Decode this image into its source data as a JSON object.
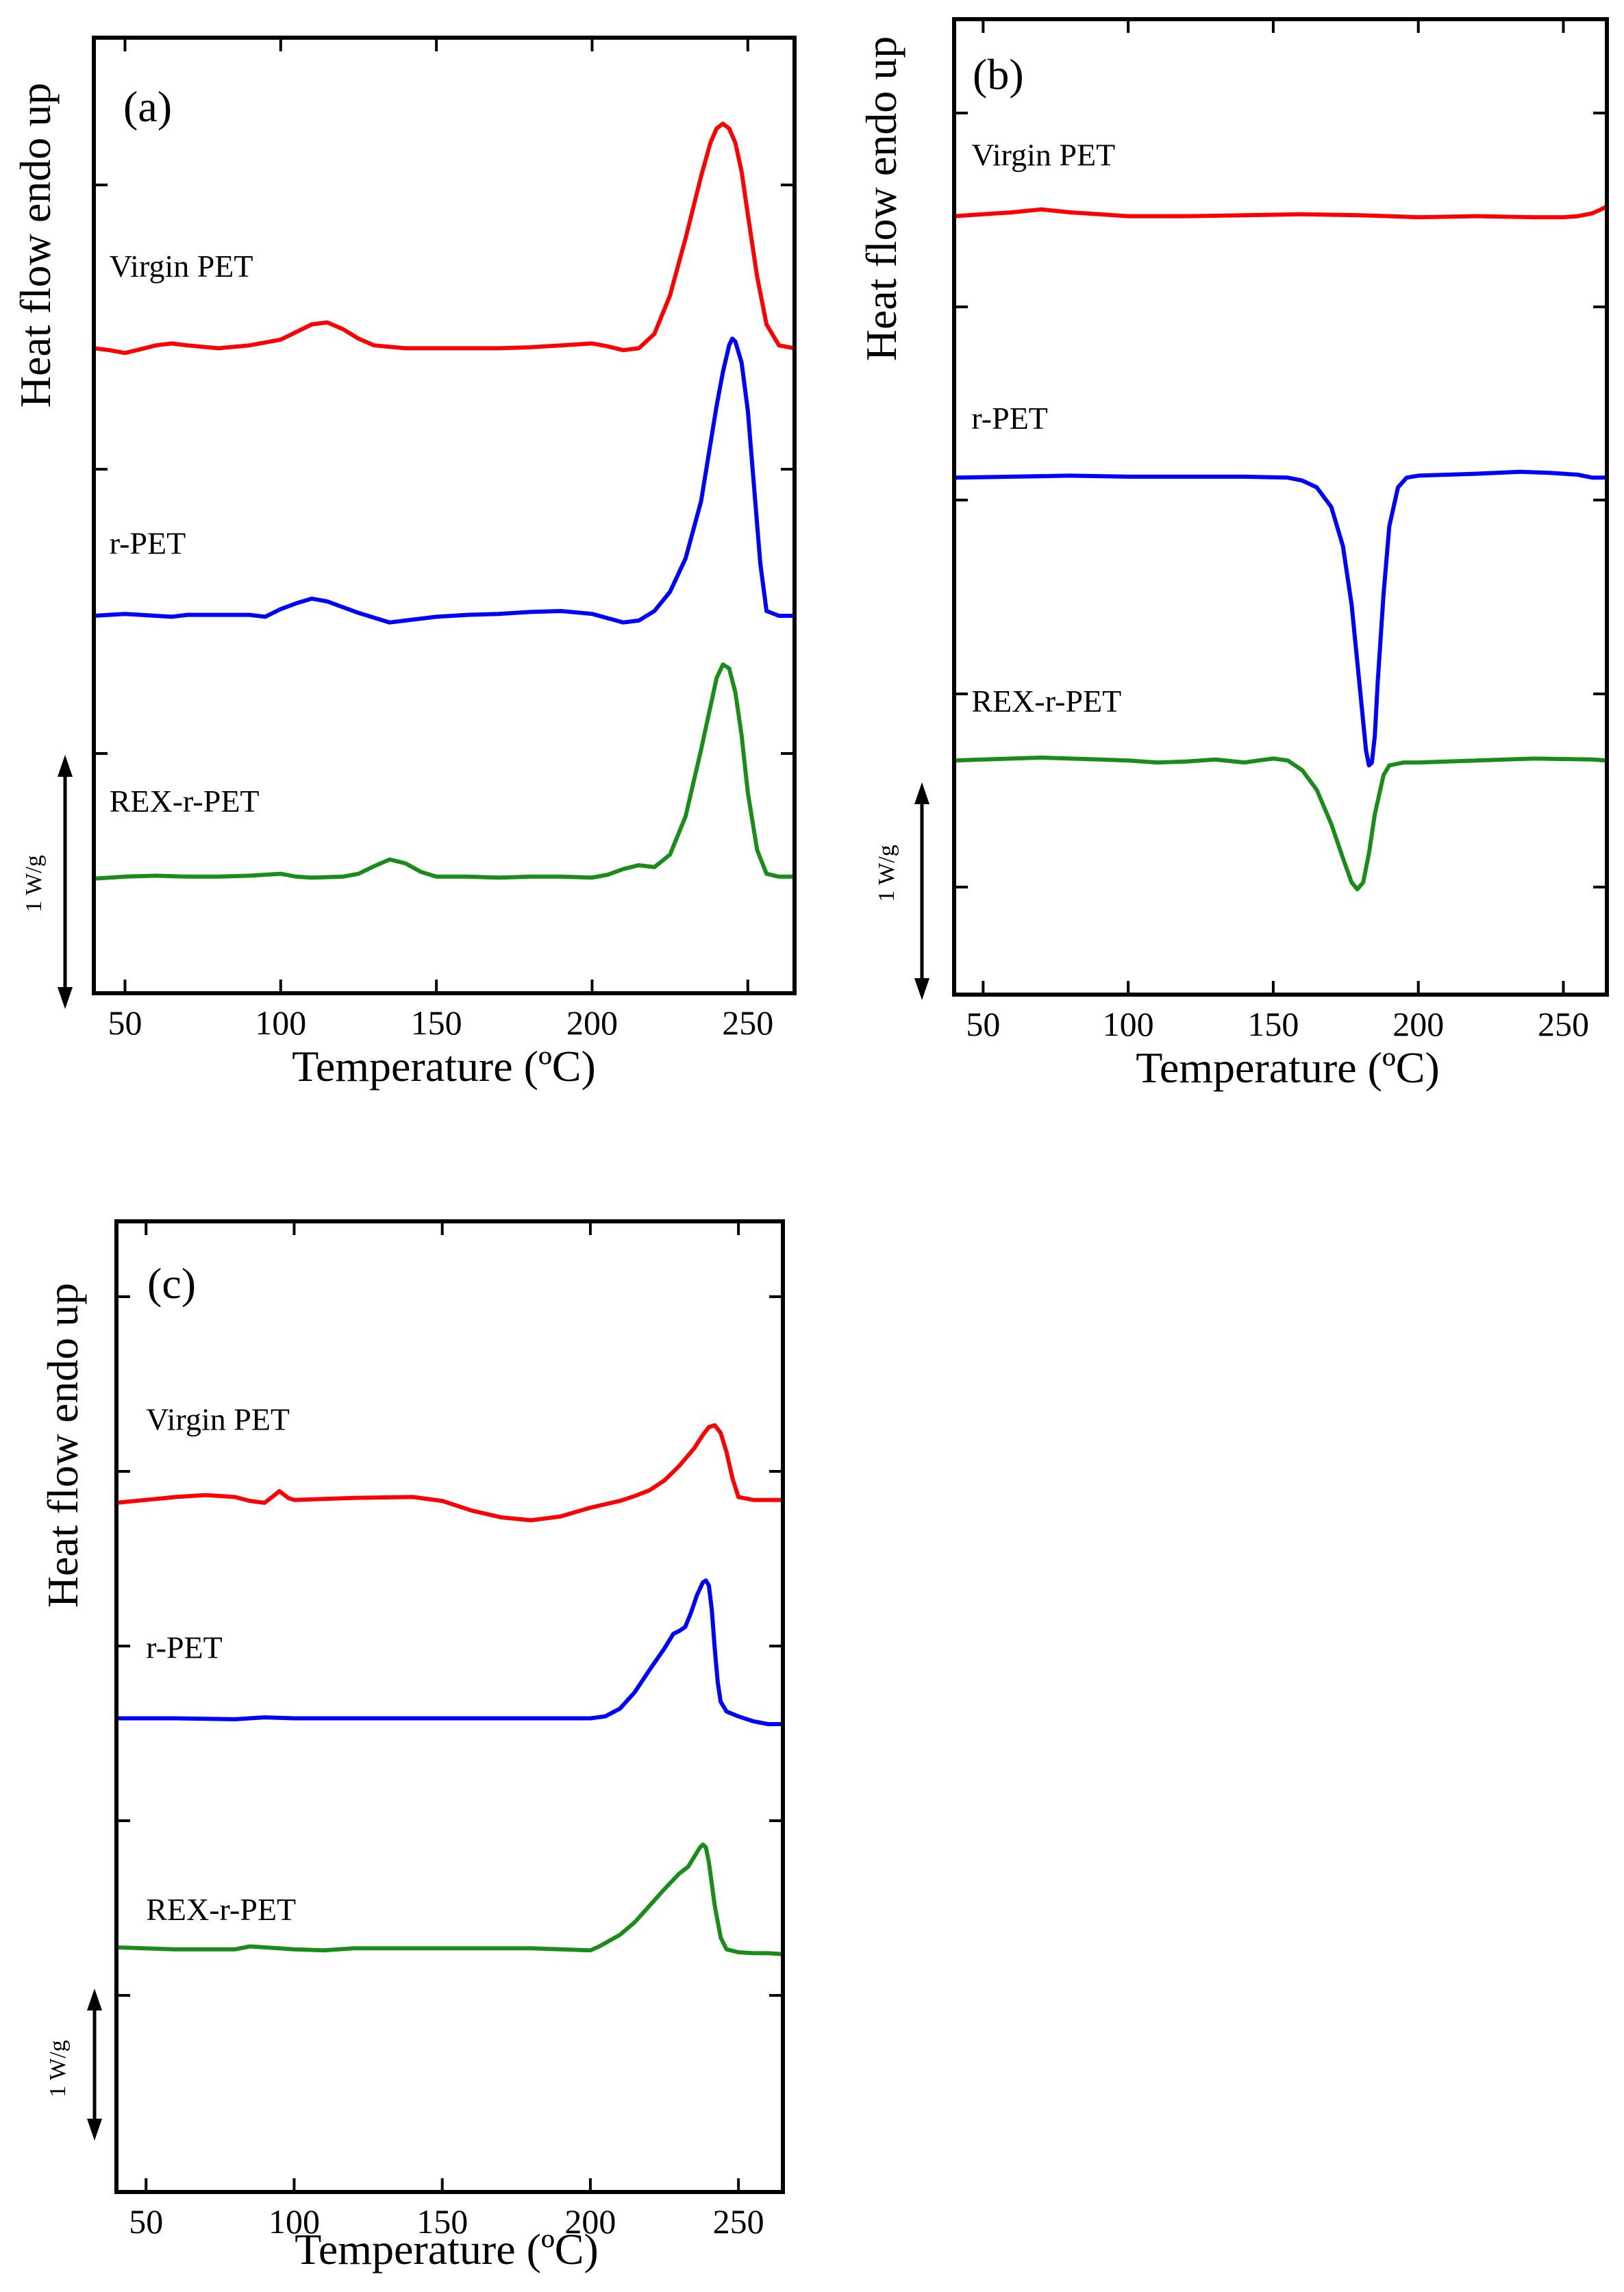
{
  "figure_title": "",
  "scale_bar_label": "1 W/g",
  "colors": {
    "Virgin PET": "#ff0000",
    "r-PET": "#0000ff",
    "REX-r-PET": "#1a8c1a"
  },
  "chart_data": [
    {
      "type": "line",
      "panel_label": "(a)",
      "title": "",
      "xlabel": "Temperature (ºC)",
      "ylabel": "Heat flow endo up",
      "xlim": [
        40,
        265
      ],
      "ylim": [
        0,
        10
      ],
      "xticks": [
        50,
        100,
        150,
        200,
        250
      ],
      "y_ticks_unlabeled": true,
      "legend": "inline labels",
      "series": [
        {
          "name": "Virgin PET",
          "label_at": [
            45,
            7.5
          ],
          "x": [
            40,
            45,
            50,
            55,
            60,
            65,
            70,
            80,
            90,
            100,
            105,
            110,
            115,
            120,
            125,
            130,
            140,
            150,
            160,
            170,
            180,
            190,
            200,
            205,
            210,
            215,
            220,
            225,
            230,
            235,
            238,
            240,
            242,
            244,
            246,
            248,
            250,
            253,
            256,
            260,
            265
          ],
          "y": [
            6.75,
            6.73,
            6.7,
            6.74,
            6.78,
            6.8,
            6.78,
            6.75,
            6.78,
            6.84,
            6.92,
            7.0,
            7.02,
            6.95,
            6.85,
            6.78,
            6.75,
            6.75,
            6.75,
            6.75,
            6.76,
            6.78,
            6.8,
            6.77,
            6.73,
            6.75,
            6.9,
            7.3,
            7.9,
            8.55,
            8.9,
            9.05,
            9.1,
            9.05,
            8.9,
            8.6,
            8.15,
            7.5,
            7.0,
            6.78,
            6.75
          ]
        },
        {
          "name": "r-PET",
          "label_at": [
            45,
            4.6
          ],
          "x": [
            40,
            45,
            50,
            60,
            65,
            70,
            80,
            90,
            95,
            100,
            105,
            110,
            115,
            120,
            125,
            130,
            135,
            140,
            150,
            160,
            170,
            180,
            190,
            200,
            210,
            215,
            220,
            225,
            230,
            235,
            238,
            240,
            242,
            244,
            245,
            246,
            248,
            250,
            252,
            254,
            256,
            260,
            265
          ],
          "y": [
            3.95,
            3.96,
            3.97,
            3.95,
            3.94,
            3.96,
            3.96,
            3.96,
            3.94,
            4.02,
            4.08,
            4.13,
            4.1,
            4.04,
            3.98,
            3.93,
            3.88,
            3.9,
            3.94,
            3.96,
            3.97,
            3.99,
            4.0,
            3.97,
            3.88,
            3.9,
            4.0,
            4.2,
            4.55,
            5.15,
            5.75,
            6.15,
            6.5,
            6.78,
            6.85,
            6.82,
            6.6,
            6.1,
            5.3,
            4.5,
            4.0,
            3.95,
            3.95
          ]
        },
        {
          "name": "REX-r-PET",
          "label_at": [
            45,
            1.9
          ],
          "x": [
            40,
            45,
            50,
            60,
            70,
            80,
            90,
            95,
            100,
            105,
            110,
            120,
            125,
            130,
            135,
            140,
            145,
            150,
            160,
            170,
            180,
            190,
            200,
            205,
            210,
            215,
            220,
            225,
            230,
            235,
            238,
            240,
            242,
            244,
            246,
            248,
            250,
            253,
            256,
            260,
            265
          ],
          "y": [
            1.2,
            1.21,
            1.22,
            1.23,
            1.22,
            1.22,
            1.23,
            1.24,
            1.25,
            1.22,
            1.21,
            1.22,
            1.25,
            1.33,
            1.4,
            1.36,
            1.27,
            1.22,
            1.22,
            1.21,
            1.22,
            1.22,
            1.21,
            1.24,
            1.3,
            1.34,
            1.32,
            1.45,
            1.85,
            2.55,
            3.0,
            3.3,
            3.44,
            3.4,
            3.15,
            2.7,
            2.1,
            1.5,
            1.25,
            1.22,
            1.22
          ]
        }
      ]
    },
    {
      "type": "line",
      "panel_label": "(b)",
      "title": "",
      "xlabel": "Temperature (ºC)",
      "ylabel": "Heat flow endo up",
      "xlim": [
        40,
        265
      ],
      "ylim": [
        0,
        10
      ],
      "xticks": [
        50,
        100,
        150,
        200,
        250
      ],
      "y_ticks_unlabeled": true,
      "legend": "inline labels",
      "series": [
        {
          "name": "Virgin PET",
          "label_at": [
            46,
            8.5
          ],
          "x": [
            40,
            50,
            60,
            70,
            80,
            90,
            100,
            120,
            140,
            160,
            180,
            200,
            220,
            240,
            250,
            255,
            260,
            263,
            265
          ],
          "y": [
            7.98,
            8.0,
            8.02,
            8.05,
            8.02,
            8.0,
            7.98,
            7.98,
            7.99,
            8.0,
            7.99,
            7.97,
            7.98,
            7.97,
            7.97,
            7.98,
            8.01,
            8.05,
            8.08
          ]
        },
        {
          "name": "r-PET",
          "label_at": [
            46,
            5.8
          ],
          "x": [
            40,
            60,
            80,
            100,
            120,
            140,
            155,
            160,
            165,
            170,
            174,
            177,
            180,
            182,
            183,
            184,
            185,
            186,
            188,
            190,
            193,
            196,
            200,
            220,
            235,
            245,
            255,
            260,
            265
          ],
          "y": [
            5.3,
            5.31,
            5.32,
            5.31,
            5.31,
            5.31,
            5.3,
            5.27,
            5.2,
            5.0,
            4.6,
            4.0,
            3.1,
            2.5,
            2.35,
            2.38,
            2.65,
            3.2,
            4.1,
            4.8,
            5.2,
            5.3,
            5.32,
            5.34,
            5.36,
            5.35,
            5.33,
            5.3,
            5.3
          ]
        },
        {
          "name": "REX-r-PET",
          "label_at": [
            46,
            2.9
          ],
          "x": [
            40,
            50,
            60,
            70,
            80,
            90,
            100,
            110,
            120,
            130,
            140,
            145,
            150,
            155,
            160,
            165,
            170,
            174,
            177,
            179,
            181,
            183,
            185,
            188,
            190,
            195,
            200,
            220,
            240,
            260,
            265
          ],
          "y": [
            2.4,
            2.41,
            2.42,
            2.43,
            2.42,
            2.41,
            2.4,
            2.38,
            2.39,
            2.41,
            2.38,
            2.4,
            2.42,
            2.4,
            2.3,
            2.1,
            1.75,
            1.4,
            1.15,
            1.08,
            1.15,
            1.45,
            1.85,
            2.25,
            2.35,
            2.38,
            2.38,
            2.4,
            2.42,
            2.41,
            2.4
          ]
        }
      ]
    },
    {
      "type": "line",
      "panel_label": "(c)",
      "title": "",
      "xlabel": "Temperature (ºC)",
      "ylabel": "Heat flow endo up",
      "xlim": [
        40,
        265
      ],
      "ylim": [
        0,
        10
      ],
      "xticks": [
        50,
        100,
        150,
        200,
        250
      ],
      "y_ticks_unlabeled": true,
      "legend": "inline labels",
      "series": [
        {
          "name": "Virgin PET",
          "label_at": [
            50,
            7.85
          ],
          "x": [
            40,
            50,
            60,
            70,
            80,
            85,
            90,
            93,
            95,
            98,
            100,
            110,
            120,
            140,
            150,
            160,
            170,
            180,
            190,
            200,
            210,
            215,
            220,
            225,
            230,
            235,
            238,
            240,
            242,
            244,
            246,
            248,
            250,
            255,
            260,
            265
          ],
          "y": [
            7.1,
            7.13,
            7.16,
            7.18,
            7.16,
            7.12,
            7.1,
            7.17,
            7.22,
            7.15,
            7.13,
            7.14,
            7.15,
            7.16,
            7.12,
            7.02,
            6.95,
            6.92,
            6.96,
            7.05,
            7.12,
            7.17,
            7.23,
            7.33,
            7.48,
            7.66,
            7.8,
            7.88,
            7.9,
            7.82,
            7.62,
            7.35,
            7.16,
            7.13,
            7.13,
            7.13
          ]
        },
        {
          "name": "r-PET",
          "label_at": [
            50,
            5.5
          ],
          "x": [
            40,
            60,
            80,
            90,
            100,
            120,
            140,
            160,
            180,
            200,
            205,
            210,
            215,
            220,
            225,
            228,
            230,
            232,
            234,
            236,
            238,
            239,
            240,
            241,
            242,
            243,
            244,
            246,
            250,
            255,
            260,
            265
          ],
          "y": [
            4.88,
            4.88,
            4.87,
            4.89,
            4.88,
            4.88,
            4.88,
            4.88,
            4.88,
            4.88,
            4.9,
            4.98,
            5.15,
            5.38,
            5.6,
            5.75,
            5.78,
            5.82,
            5.97,
            6.15,
            6.28,
            6.3,
            6.25,
            6.0,
            5.6,
            5.25,
            5.05,
            4.95,
            4.9,
            4.85,
            4.82,
            4.82
          ]
        },
        {
          "name": "REX-r-PET",
          "label_at": [
            50,
            2.8
          ],
          "x": [
            40,
            60,
            80,
            85,
            90,
            100,
            110,
            120,
            140,
            160,
            180,
            190,
            200,
            203,
            210,
            215,
            220,
            225,
            230,
            233,
            235,
            237,
            238,
            239,
            240,
            242,
            244,
            246,
            250,
            255,
            260,
            265
          ],
          "y": [
            2.52,
            2.5,
            2.5,
            2.53,
            2.52,
            2.5,
            2.49,
            2.51,
            2.51,
            2.51,
            2.51,
            2.5,
            2.49,
            2.53,
            2.65,
            2.78,
            2.95,
            3.12,
            3.28,
            3.35,
            3.45,
            3.55,
            3.58,
            3.55,
            3.4,
            2.95,
            2.62,
            2.5,
            2.47,
            2.46,
            2.46,
            2.45
          ]
        }
      ]
    }
  ]
}
